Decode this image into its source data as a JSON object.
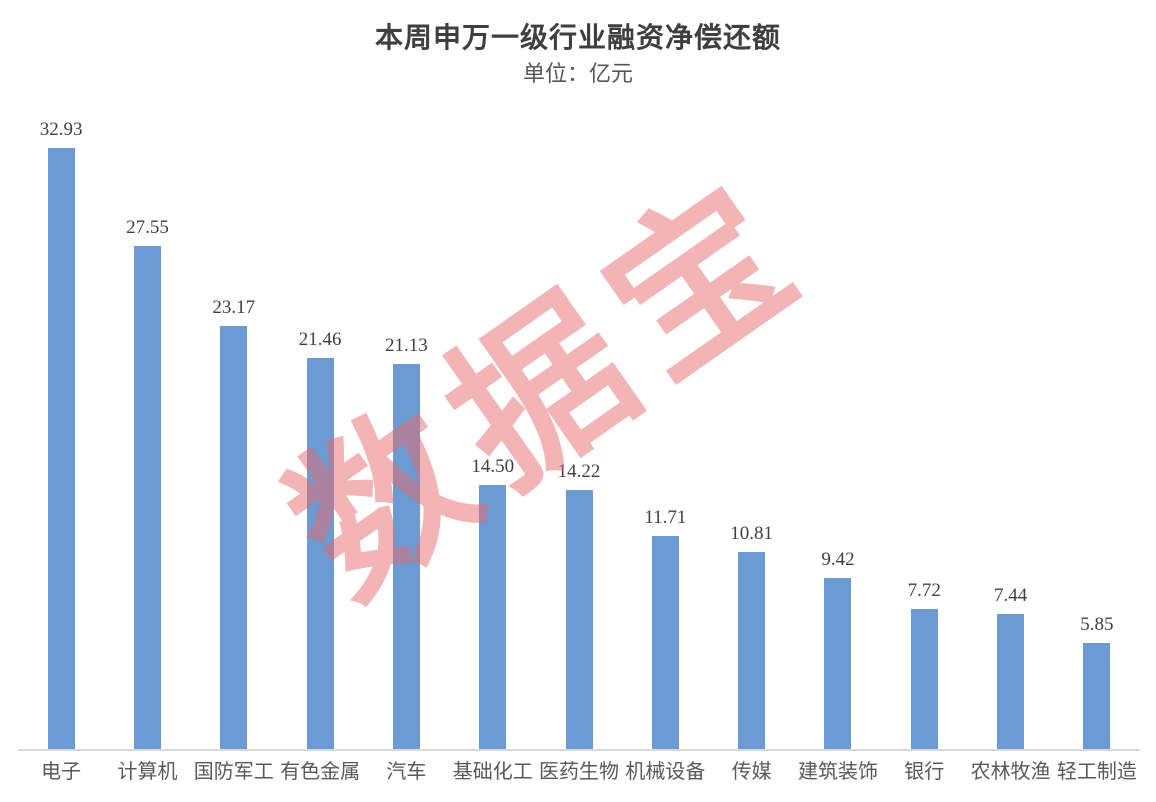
{
  "title": "本周申万一级行业融资净偿还额",
  "subtitle": "单位：亿元",
  "watermark_text": "数据宝",
  "colors": {
    "bar": "#6b9bd2",
    "axis_line": "#d9d9d9",
    "watermark": "rgba(230,105,105,0.5)",
    "title_text": "#3f3f3f",
    "value_label_text": "#404040",
    "category_label_text": "#595959",
    "background": "#ffffff"
  },
  "chart_data": {
    "type": "bar",
    "title": "本周申万一级行业融资净偿还额",
    "subtitle": "单位：亿元",
    "unit": "亿元",
    "categories": [
      "电子",
      "计算机",
      "国防军工",
      "有色金属",
      "汽车",
      "基础化工",
      "医药生物",
      "机械设备",
      "传媒",
      "建筑装饰",
      "银行",
      "农林牧渔",
      "轻工制造"
    ],
    "values": [
      32.93,
      27.55,
      23.17,
      21.46,
      21.13,
      14.5,
      14.22,
      11.71,
      10.81,
      9.42,
      7.72,
      7.44,
      5.85
    ],
    "value_labels": [
      "32.93",
      "27.55",
      "23.17",
      "21.46",
      "21.13",
      "14.50",
      "14.22",
      "11.71",
      "10.81",
      "9.42",
      "7.72",
      "7.44",
      "5.85"
    ],
    "xlabel": "",
    "ylabel": "",
    "ylim": [
      0,
      35
    ],
    "grid": false,
    "legend": false,
    "data_labels_shown": true,
    "sort_order": "descending"
  }
}
